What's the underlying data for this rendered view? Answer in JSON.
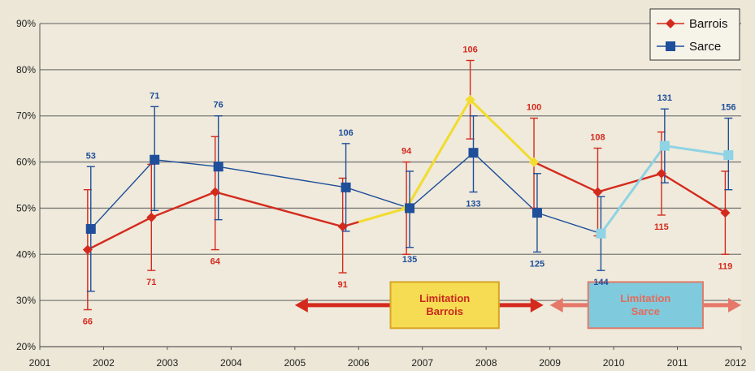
{
  "chart_data": {
    "type": "line",
    "ylim": [
      20,
      90
    ],
    "xlim": [
      2001,
      2012
    ],
    "y_tick_labels": [
      "20%",
      "30%",
      "40%",
      "50%",
      "60%",
      "70%",
      "80%",
      "90%"
    ],
    "y_ticks": [
      20,
      30,
      40,
      50,
      60,
      70,
      80,
      90
    ],
    "x_tick_labels": [
      "2001",
      "2002",
      "2003",
      "2004",
      "2005",
      "2006",
      "2007",
      "2008",
      "2009",
      "2010",
      "2011",
      "2012"
    ],
    "x_ticks": [
      2001,
      2002,
      2003,
      2004,
      2005,
      2006,
      2007,
      2008,
      2009,
      2010,
      2011,
      2012
    ],
    "grid": "horizontal",
    "legend_position": "top-right",
    "series": [
      {
        "name": "Barrois",
        "color": "#d42a1e",
        "marker": "diamond",
        "points": [
          {
            "x": 2001.75,
            "y": 41,
            "lo": 28,
            "hi": 54,
            "n": "66",
            "label_pos": "below"
          },
          {
            "x": 2002.75,
            "y": 48,
            "lo": 36.5,
            "hi": 59.5,
            "n": "71",
            "label_pos": "below"
          },
          {
            "x": 2003.75,
            "y": 53.5,
            "lo": 41,
            "hi": 65.5,
            "n": "64",
            "label_pos": "below"
          },
          {
            "x": 2005.75,
            "y": 46,
            "lo": 36,
            "hi": 56.5,
            "n": "91",
            "label_pos": "below"
          },
          {
            "x": 2006.75,
            "y": 50,
            "lo": 40,
            "hi": 60,
            "n": "94",
            "label_pos": "above"
          },
          {
            "x": 2007.75,
            "y": 73.5,
            "lo": 65,
            "hi": 82,
            "n": "106",
            "label_pos": "above"
          },
          {
            "x": 2008.75,
            "y": 60,
            "lo": 50,
            "hi": 69.5,
            "n": "100",
            "label_pos": "above"
          },
          {
            "x": 2009.75,
            "y": 53.5,
            "lo": 44,
            "hi": 63,
            "n": "108",
            "label_pos": "above"
          },
          {
            "x": 2010.75,
            "y": 57.5,
            "lo": 48.5,
            "hi": 66.5,
            "n": "115",
            "label_pos": "below"
          },
          {
            "x": 2011.75,
            "y": 49,
            "lo": 40,
            "hi": 58,
            "n": "119",
            "label_pos": "below"
          }
        ]
      },
      {
        "name": "Sarce",
        "color": "#1f4e9a",
        "marker": "square",
        "points": [
          {
            "x": 2001.8,
            "y": 45.5,
            "lo": 32,
            "hi": 59,
            "n": "53",
            "label_pos": "above"
          },
          {
            "x": 2002.8,
            "y": 60.5,
            "lo": 49.5,
            "hi": 72,
            "n": "71",
            "label_pos": "above"
          },
          {
            "x": 2003.8,
            "y": 59,
            "lo": 47.5,
            "hi": 70,
            "n": "76",
            "label_pos": "above"
          },
          {
            "x": 2005.8,
            "y": 54.5,
            "lo": 45,
            "hi": 64,
            "n": "106",
            "label_pos": "above"
          },
          {
            "x": 2006.8,
            "y": 50,
            "lo": 41.5,
            "hi": 58,
            "n": "135",
            "label_pos": "below"
          },
          {
            "x": 2007.8,
            "y": 62,
            "lo": 53.5,
            "hi": 70,
            "n": "133",
            "label_pos": "below"
          },
          {
            "x": 2008.8,
            "y": 49,
            "lo": 40.5,
            "hi": 57.5,
            "n": "125",
            "label_pos": "below"
          },
          {
            "x": 2009.8,
            "y": 44.5,
            "lo": 36.5,
            "hi": 52.5,
            "n": "144",
            "label_pos": "below"
          },
          {
            "x": 2010.8,
            "y": 63.5,
            "lo": 55.5,
            "hi": 71.5,
            "n": "131",
            "label_pos": "above"
          },
          {
            "x": 2011.8,
            "y": 61.5,
            "lo": 54,
            "hi": 69.5,
            "n": "156",
            "label_pos": "above"
          }
        ]
      }
    ],
    "highlight_segments": [
      {
        "series": "Barrois",
        "x": [
          2006.0,
          2006.75,
          2007.75,
          2008.75
        ],
        "y": [
          47,
          50,
          73.5,
          60
        ],
        "color": "#f2dc2e"
      },
      {
        "series": "Sarce",
        "x": [
          2009.8,
          2010.8,
          2011.8
        ],
        "y": [
          44.5,
          63.5,
          61.5
        ],
        "color": "#8fd3e4"
      }
    ],
    "annotations": [
      {
        "text_lines": [
          "Limitation",
          "Barrois"
        ],
        "box_x": [
          2006.5,
          2008.2
        ],
        "box_y": [
          24,
          34
        ],
        "fill": "#f6dc52",
        "stroke": "#d8a524",
        "text_color": "#c8281e",
        "arrow_x": [
          2005.0,
          2008.9
        ],
        "arrow_color": "#d42a1e"
      },
      {
        "text_lines": [
          "Limitation",
          "Sarce"
        ],
        "box_x": [
          2009.6,
          2011.4
        ],
        "box_y": [
          24,
          34
        ],
        "fill": "#7fcbdd",
        "stroke": "#e07a6a",
        "text_color": "#e56a5a",
        "arrow_x": [
          2009.0,
          2012.0
        ],
        "arrow_color": "#e6786a"
      }
    ]
  }
}
